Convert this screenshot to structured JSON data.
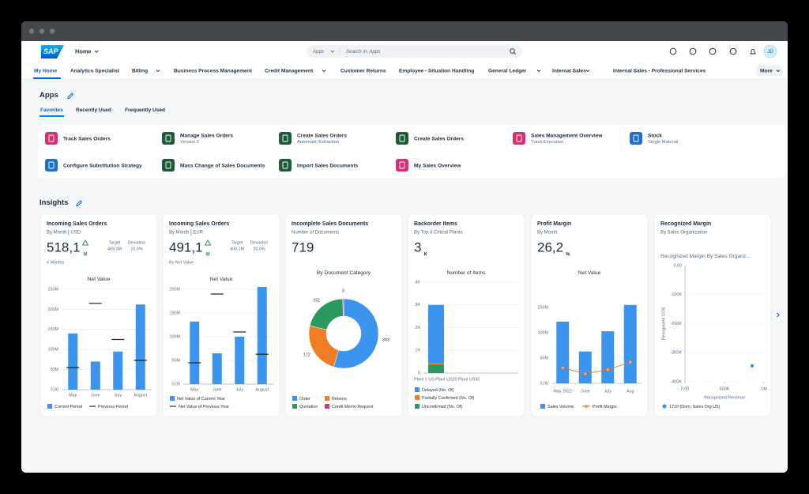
{
  "header": {
    "logo": "SAP",
    "home": "Home",
    "search_scope": "Apps",
    "search_placeholder": "Search in: Apps",
    "avatar": "JD"
  },
  "nav": {
    "items": [
      "My Home",
      "Analytics Specialist",
      "Billing",
      "Business Process Management",
      "Credit Management",
      "Customer Returns",
      "Employee - Situation Handling",
      "General Ledger",
      "Internal Sales",
      "Internal Sales - Professional Services"
    ],
    "more": "More"
  },
  "apps": {
    "title": "Apps",
    "tabs": [
      "Favorites",
      "Recently Used",
      "Frequently Used"
    ],
    "tiles": [
      {
        "title": "Track Sales Orders"
      },
      {
        "title": "Manage Sales Orders",
        "subtitle": "Version 2"
      },
      {
        "title": "Create Sales Orders",
        "subtitle": "Automatic Extraction"
      },
      {
        "title": "Create Sales Orders"
      },
      {
        "title": "Sales Management Overview",
        "subtitle": "Track Execution"
      },
      {
        "title": "Stock",
        "subtitle": "Single Material"
      },
      {
        "title": "Configure Substitution Strategy"
      },
      {
        "title": "Mass Change of Sales Documents"
      },
      {
        "title": "Import Sales Documents"
      },
      {
        "title": "My Sales Overview"
      }
    ]
  },
  "insights": {
    "title": "Insights",
    "cards": [
      {
        "title": "Incoming Sales Orders",
        "subtitle": "By Month",
        "unit": "USD",
        "kpi": "518,1",
        "kpi_unit": "M",
        "target_label": "Target",
        "target": "469,0M",
        "deviation_label": "Deviation",
        "deviation": "10,5%",
        "footnote": "4 Months",
        "chart_data": {
          "type": "bar",
          "title": "Net Value",
          "categories": [
            "May",
            "June",
            "July",
            "August"
          ],
          "series": [
            {
              "name": "Current Period",
              "color": "#3b95ef",
              "values": [
                140,
                70,
                95,
                212
              ]
            },
            {
              "name": "Previous Period",
              "color": "#2b2b2b",
              "marker": "dash",
              "values": [
                55,
                215,
                125,
                73
              ]
            }
          ],
          "ylim": [
            0,
            250
          ],
          "yticks": [
            {
              "value": 0,
              "label": "0,00"
            },
            {
              "value": 50,
              "label": "50M"
            },
            {
              "value": 100,
              "label": "100M"
            },
            {
              "value": 150,
              "label": "150M"
            },
            {
              "value": 200,
              "label": "200M"
            },
            {
              "value": 250,
              "label": "250M"
            }
          ],
          "grid": true
        }
      },
      {
        "title": "Incoming Sales Orders",
        "subtitle": "By Month",
        "unit": "EUR",
        "kpi": "491,1",
        "kpi_unit": "M",
        "target_label": "Target",
        "target": "409,2M",
        "deviation_label": "Deviation",
        "deviation": "20,0%",
        "footnote": "By Net Value",
        "chart_data": {
          "type": "bar",
          "title": "Net Value",
          "categories": [
            "May",
            "June",
            "July",
            "August"
          ],
          "series": [
            {
              "name": "Net Value of Current Year",
              "color": "#3b95ef",
              "values": [
                132,
                65,
                100,
                205
              ]
            },
            {
              "name": "Net Value of Previous Year",
              "color": "#2b2b2b",
              "marker": "dash",
              "values": [
                45,
                190,
                110,
                63
              ]
            }
          ],
          "ylim": [
            0,
            200
          ],
          "yticks": [
            {
              "value": 0,
              "label": "0,00"
            },
            {
              "value": 50,
              "label": "50M"
            },
            {
              "value": 100,
              "label": "100M"
            },
            {
              "value": 150,
              "label": "150M"
            },
            {
              "value": 200,
              "label": "200M"
            }
          ],
          "grid": true
        }
      },
      {
        "title": "Incomplete Sales Documents",
        "subtitle": "Number of Documents",
        "kpi": "719",
        "chart_data": {
          "type": "donut",
          "title": "By Document Category",
          "categories": [
            "Order",
            "Returns",
            "Quotation",
            "Credit Memo Request"
          ],
          "values": [
            393,
            172,
            151,
            3
          ],
          "colors": [
            "#3b95ef",
            "#ef7d25",
            "#2b9a5e",
            "#e0367a"
          ]
        }
      },
      {
        "title": "Backorder Items",
        "subtitle": "By Top 4 Critical Plants",
        "kpi": "3",
        "kpi_unit": "K",
        "chart_data": {
          "type": "stacked_bar",
          "title": "Number of Items",
          "categories": [
            "Plant 1 US Plant US20 Plant US30"
          ],
          "series": [
            {
              "name": "Delayed (No. Of)",
              "color": "#3b95ef",
              "values": [
                2.58
              ]
            },
            {
              "name": "Partially Confirmed (No. Of)",
              "color": "#ef7d25",
              "values": [
                0.04
              ]
            },
            {
              "name": "Unconfirmed (No. Of)",
              "color": "#2b9a5e",
              "values": [
                0.38
              ]
            }
          ],
          "ylim": [
            0,
            4
          ],
          "yticks": [
            0,
            {
              "value": 1,
              "label": "1K"
            },
            {
              "value": 2,
              "label": "2K"
            },
            {
              "value": 3,
              "label": "3K"
            },
            {
              "value": 4,
              "label": "4K"
            }
          ],
          "grid": true
        }
      },
      {
        "title": "Profit Margin",
        "subtitle": "By Month",
        "kpi": "26,2",
        "kpi_unit": "%",
        "chart_data": {
          "type": "combo",
          "title": "Net Value",
          "categories": [
            "May 2022",
            "June",
            "July",
            "Aug"
          ],
          "series": [
            {
              "name": "Sales Volume",
              "color": "#3b95ef",
              "values": [
                122,
                63,
                103,
                155
              ]
            },
            {
              "name": "Profit Margin",
              "color": "#e9730c",
              "type": "line",
              "values": [
                31,
                19,
                27,
                42
              ]
            }
          ],
          "ylim": [
            0,
            150
          ],
          "yticks": [
            {
              "value": 0,
              "label": "0,00"
            },
            {
              "value": 50,
              "label": "50M"
            },
            {
              "value": 100,
              "label": "100M"
            },
            {
              "value": 150,
              "label": "150M"
            }
          ],
          "grid": false
        }
      },
      {
        "title": "Recognized Margin",
        "subtitle": "By Sales Organization",
        "chart_data": {
          "type": "scatter",
          "title": "Recognized Margin By Sales Organz...",
          "xlabel": "Recognized Revenue",
          "ylabel": "Recognized COS",
          "series": [
            {
              "name": "1710 (Dom. Sales Org US)",
              "color": "#3b95ef",
              "x": [
                850
              ],
              "values": [
                -345
              ]
            }
          ],
          "xlim": [
            0,
            1000
          ],
          "xticks": [
            {
              "value": 0,
              "label": "0,00"
            },
            {
              "value": 500,
              "label": "500K"
            },
            {
              "value": 1000,
              "label": "1M"
            }
          ],
          "ylim": [
            -400,
            0
          ],
          "yticks": [
            {
              "value": 0,
              "label": "0,00"
            },
            {
              "value": -100,
              "label": "-100K"
            },
            {
              "value": -200,
              "label": "-200K"
            },
            {
              "value": -300,
              "label": "-300K"
            },
            {
              "value": -400,
              "label": "-400K"
            }
          ],
          "grid": true
        }
      }
    ]
  }
}
